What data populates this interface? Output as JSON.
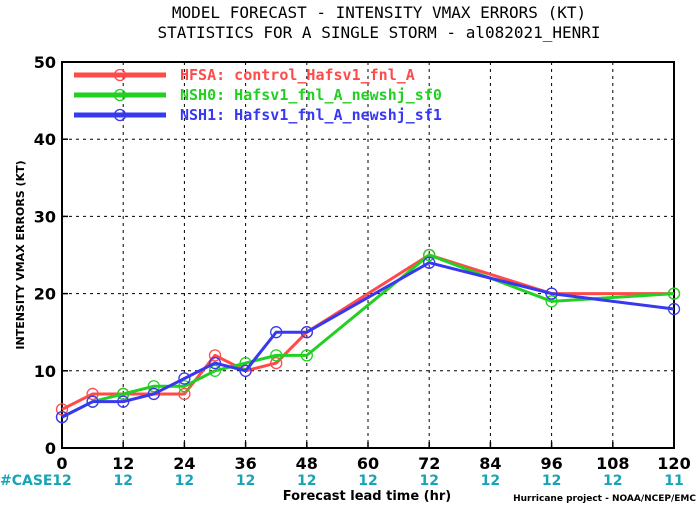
{
  "chart_data": {
    "type": "line",
    "title": "MODEL FORECAST - INTENSITY VMAX ERRORS (KT)",
    "subtitle": "STATISTICS FOR A SINGLE STORM - al082021_HENRI",
    "xlabel": "Forecast lead time (hr)",
    "ylabel": "INTENSITY VMAX ERRORS (KT)",
    "xlim": [
      0,
      120
    ],
    "ylim": [
      0,
      50
    ],
    "xticks": [
      "0",
      "12",
      "24",
      "36",
      "48",
      "60",
      "72",
      "84",
      "96",
      "108",
      "120"
    ],
    "yticks": [
      "0",
      "10",
      "20",
      "30",
      "40",
      "50"
    ],
    "grid": true,
    "legend_position": "top-left",
    "series": [
      {
        "name": "HFSA: control_Hafsv1_fnl_A",
        "color": "#ff4a4a",
        "x": [
          0,
          6,
          12,
          18,
          24,
          30,
          36,
          42,
          48,
          72,
          96,
          120
        ],
        "y": [
          5,
          7,
          7,
          7,
          7,
          12,
          10,
          11,
          15,
          25,
          20,
          20
        ]
      },
      {
        "name": "NSH0: Hafsv1_fnl_A_newshj_sf0",
        "color": "#22d022",
        "x": [
          0,
          6,
          12,
          18,
          24,
          30,
          36,
          42,
          48,
          72,
          96,
          120
        ],
        "y": [
          4,
          6,
          7,
          8,
          8,
          10,
          11,
          12,
          12,
          25,
          19,
          20
        ]
      },
      {
        "name": "NSH1: Hafsv1_fnl_A_newshj_sf1",
        "color": "#3838f0",
        "x": [
          0,
          6,
          12,
          18,
          24,
          30,
          36,
          42,
          48,
          72,
          96,
          120
        ],
        "y": [
          4,
          6,
          6,
          7,
          9,
          11,
          10,
          15,
          15,
          24,
          20,
          18
        ]
      }
    ],
    "case_label": "#CASE",
    "case_counts": [
      {
        "hour": 0,
        "count": "12"
      },
      {
        "hour": 12,
        "count": "12"
      },
      {
        "hour": 24,
        "count": "12"
      },
      {
        "hour": 36,
        "count": "12"
      },
      {
        "hour": 48,
        "count": "12"
      },
      {
        "hour": 60,
        "count": "12"
      },
      {
        "hour": 72,
        "count": "12"
      },
      {
        "hour": 84,
        "count": "12"
      },
      {
        "hour": 96,
        "count": "12"
      },
      {
        "hour": 108,
        "count": "12"
      },
      {
        "hour": 120,
        "count": "11"
      }
    ],
    "credit": "Hurricane project - NOAA/NCEP/EMC"
  }
}
